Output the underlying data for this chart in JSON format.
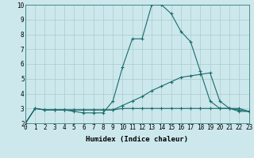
{
  "xlabel": "Humidex (Indice chaleur)",
  "xlim": [
    0,
    23
  ],
  "ylim": [
    2,
    10
  ],
  "yticks": [
    2,
    3,
    4,
    5,
    6,
    7,
    8,
    9,
    10
  ],
  "xticks": [
    0,
    1,
    2,
    3,
    4,
    5,
    6,
    7,
    8,
    9,
    10,
    11,
    12,
    13,
    14,
    15,
    16,
    17,
    18,
    19,
    20,
    21,
    22,
    23
  ],
  "background_color": "#cce8ec",
  "grid_color": "#aacccc",
  "line_color": "#1a6b6b",
  "line1_x": [
    0,
    1,
    2,
    3,
    4,
    5,
    6,
    7,
    8,
    9,
    10,
    11,
    12,
    13,
    14,
    15,
    16,
    17,
    18,
    19,
    20,
    21,
    22,
    23
  ],
  "line1_y": [
    2.0,
    3.0,
    2.9,
    2.9,
    2.9,
    2.8,
    2.7,
    2.7,
    2.7,
    3.5,
    5.8,
    7.7,
    7.7,
    10.0,
    10.0,
    9.4,
    8.2,
    7.5,
    5.5,
    3.5,
    3.0,
    3.0,
    2.8,
    2.8
  ],
  "line2_x": [
    0,
    1,
    2,
    3,
    4,
    5,
    6,
    7,
    8,
    9,
    10,
    11,
    12,
    13,
    14,
    15,
    16,
    17,
    18,
    19,
    20,
    21,
    22,
    23
  ],
  "line2_y": [
    2.0,
    3.0,
    2.9,
    2.9,
    2.9,
    2.9,
    2.9,
    2.9,
    2.9,
    2.9,
    3.2,
    3.5,
    3.8,
    4.2,
    4.5,
    4.8,
    5.1,
    5.2,
    5.3,
    5.4,
    3.5,
    3.0,
    3.0,
    2.8
  ],
  "line3_x": [
    0,
    1,
    2,
    3,
    4,
    5,
    6,
    7,
    8,
    9,
    10,
    11,
    12,
    13,
    14,
    15,
    16,
    17,
    18,
    19,
    20,
    21,
    22,
    23
  ],
  "line3_y": [
    2.0,
    3.0,
    2.9,
    2.9,
    2.9,
    2.9,
    2.9,
    2.9,
    2.9,
    2.9,
    3.0,
    3.0,
    3.0,
    3.0,
    3.0,
    3.0,
    3.0,
    3.0,
    3.0,
    3.0,
    3.0,
    3.0,
    2.9,
    2.8
  ],
  "tick_fontsize": 5.5,
  "xlabel_fontsize": 6.5
}
